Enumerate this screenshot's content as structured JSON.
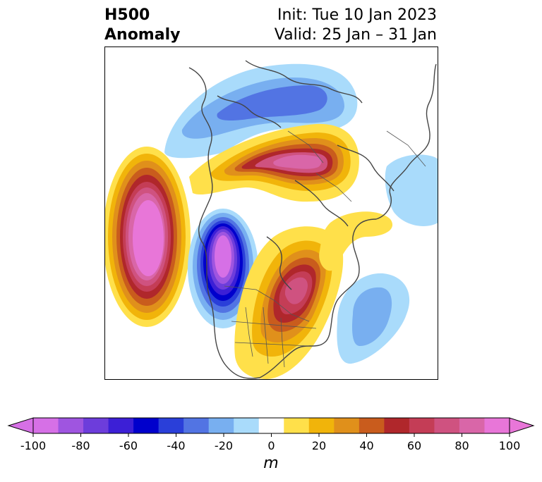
{
  "title": {
    "left_line1": "H500",
    "left_line2": "Anomaly",
    "init": "Init: Tue 10 Jan 2023",
    "valid": "Valid: 25 Jan – 31 Jan"
  },
  "colorbar": {
    "unit": "m",
    "ticks": [
      "-100",
      "-80",
      "-60",
      "-40",
      "-20",
      "0",
      "20",
      "40",
      "60",
      "80",
      "100"
    ],
    "levels": [
      -100,
      -90,
      -80,
      -70,
      -60,
      -50,
      -40,
      -30,
      -20,
      -10,
      10,
      20,
      30,
      40,
      50,
      60,
      70,
      80,
      90,
      100
    ],
    "colors": [
      "#d670e6",
      "#9f55e0",
      "#6d3ddb",
      "#3c1fd6",
      "#0000cc",
      "#2a3fd9",
      "#5274e3",
      "#78aff0",
      "#a9dbfb",
      "#ffffff",
      "#ffe04a",
      "#f1b40a",
      "#e0901b",
      "#c95c1d",
      "#b0272b",
      "#c43d56",
      "#cf5280",
      "#d966a8",
      "#e876d8"
    ],
    "extend": "both"
  },
  "map": {
    "projection": "polar stereographic, North Pole",
    "field": "500 hPa geopotential height anomaly"
  }
}
